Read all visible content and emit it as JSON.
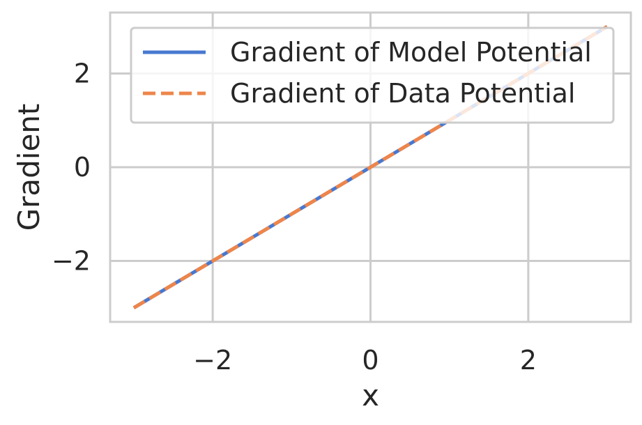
{
  "chart_data": {
    "type": "line",
    "title": "",
    "xlabel": "x",
    "ylabel": "Gradient",
    "xlim": [
      -3.3,
      3.3
    ],
    "ylim": [
      -3.3,
      3.3
    ],
    "xticks": [
      -2,
      0,
      2
    ],
    "xtick_labels": [
      "−2",
      "0",
      "2"
    ],
    "yticks": [
      -2,
      0,
      2
    ],
    "ytick_labels": [
      "−2",
      "0",
      "2"
    ],
    "grid": true,
    "legend_position": "top-right",
    "series": [
      {
        "name": "Gradient of Model Potential",
        "style": "solid",
        "color": "#4878d0",
        "x": [
          -3,
          -2,
          -1,
          0,
          1,
          2,
          3
        ],
        "y": [
          -3,
          -2,
          -1,
          0,
          1,
          2,
          3
        ]
      },
      {
        "name": "Gradient of Data Potential",
        "style": "dashed",
        "color": "#ee854a",
        "x": [
          -3,
          -2,
          -1,
          0,
          1,
          2,
          3
        ],
        "y": [
          -3,
          -2,
          -1,
          0,
          1,
          2,
          3
        ]
      }
    ]
  }
}
